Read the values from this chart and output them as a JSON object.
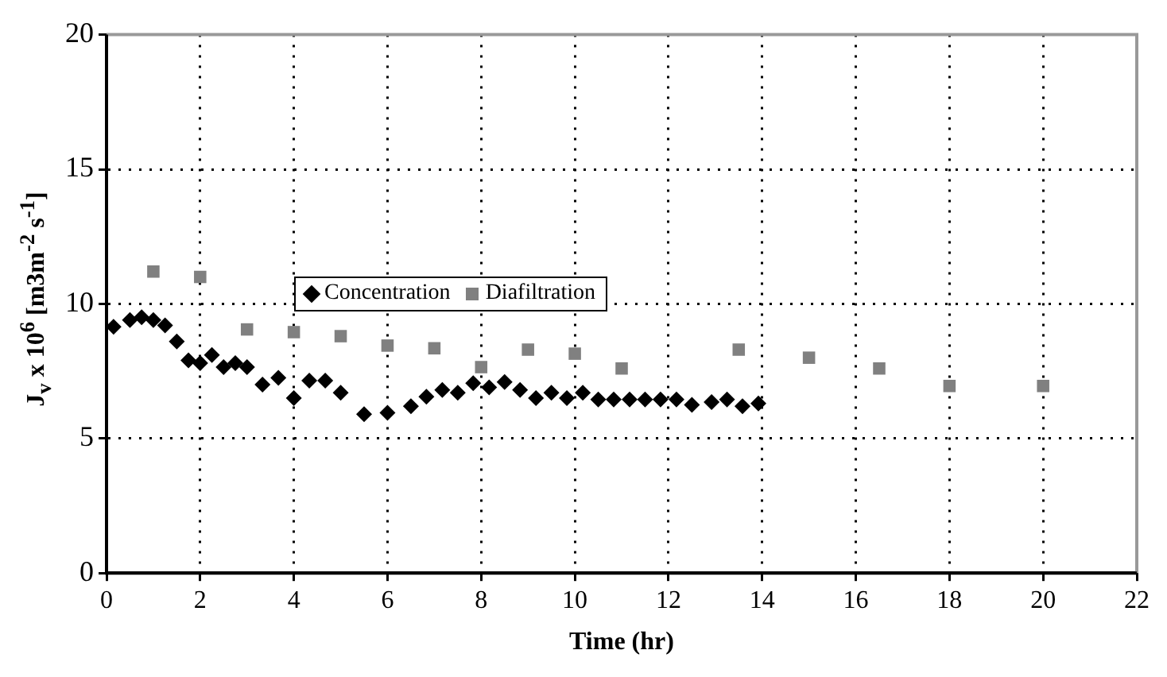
{
  "chart_data": {
    "type": "scatter",
    "xlabel": "Time (hr)",
    "ylabel": "J$_{v}$ x 10$^{6}$ [m3m$^{-2}$ s$^{-1}$]",
    "xlim": [
      0,
      22
    ],
    "xticks": [
      0,
      2,
      4,
      6,
      8,
      10,
      12,
      14,
      16,
      18,
      20,
      22
    ],
    "ylim": [
      0,
      20
    ],
    "yticks": [
      0,
      5,
      10,
      15,
      20
    ],
    "grid": true,
    "legend": "top left",
    "series": [
      {
        "name": "Concentration",
        "color": "#000000",
        "marker": "diamond",
        "x": [
          0.15,
          0.5,
          0.75,
          1.0,
          1.25,
          1.5,
          1.75,
          2.0,
          2.25,
          2.5,
          2.75,
          3.0,
          3.33,
          3.67,
          4.0,
          4.33,
          4.67,
          5.0,
          5.5,
          6.0,
          6.5,
          6.83,
          7.17,
          7.5,
          7.83,
          8.17,
          8.5,
          8.83,
          9.17,
          9.5,
          9.83,
          10.17,
          10.5,
          10.83,
          11.17,
          11.5,
          11.83,
          12.17,
          12.5,
          12.92,
          13.25,
          13.58,
          13.92
        ],
        "values": [
          9.15,
          9.4,
          9.5,
          9.4,
          9.2,
          8.6,
          7.9,
          7.8,
          8.1,
          7.65,
          7.8,
          7.65,
          7.0,
          7.25,
          6.5,
          7.15,
          7.15,
          6.7,
          5.9,
          5.95,
          6.2,
          6.55,
          6.8,
          6.7,
          7.05,
          6.9,
          7.1,
          6.8,
          6.5,
          6.7,
          6.5,
          6.7,
          6.45,
          6.45,
          6.45,
          6.45,
          6.45,
          6.45,
          6.25,
          6.35,
          6.45,
          6.2,
          6.3
        ]
      },
      {
        "name": "Diafiltration",
        "color": "#808080",
        "marker": "square",
        "x": [
          1,
          2,
          3,
          4,
          5,
          6,
          7,
          8,
          9,
          10,
          11,
          13.5,
          15,
          16.5,
          18,
          20
        ],
        "values": [
          11.2,
          11.0,
          9.05,
          8.95,
          8.8,
          8.45,
          8.35,
          7.65,
          8.3,
          8.15,
          7.6,
          8.3,
          8.0,
          7.6,
          6.95,
          6.95
        ]
      }
    ]
  }
}
